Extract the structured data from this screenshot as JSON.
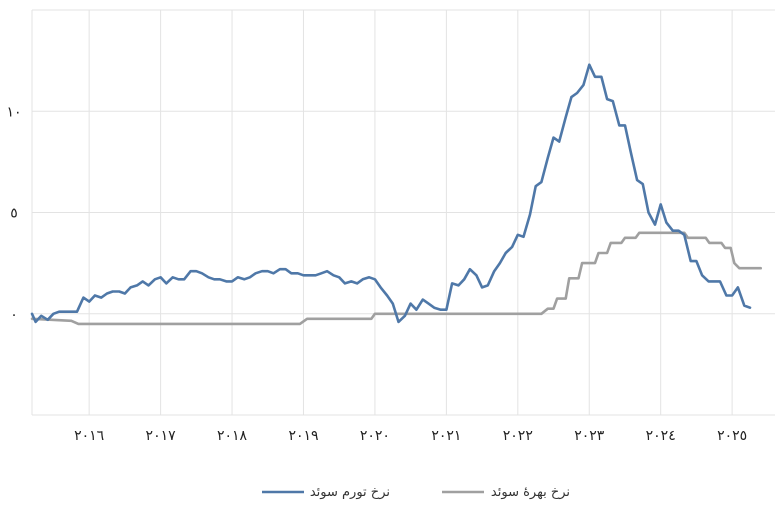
{
  "chart_data": {
    "type": "line",
    "title": "",
    "xlabel": "",
    "ylabel": "",
    "xlim": [
      2015.2,
      2025.6
    ],
    "ylim": [
      -5,
      15
    ],
    "x_ticks": [
      2016,
      2017,
      2018,
      2019,
      2020,
      2021,
      2022,
      2023,
      2024,
      2025
    ],
    "x_tick_labels": [
      "٢٠١٦",
      "٢٠١٧",
      "٢٠١٨",
      "٢٠١٩",
      "٢٠٢٠",
      "٢٠٢١",
      "٢٠٢٢",
      "٢٠٢٣",
      "٢٠٢٤",
      "٢٠٢٥"
    ],
    "y_ticks": [
      0,
      5,
      10
    ],
    "y_tick_labels": [
      "٠",
      "٥",
      "١٠"
    ],
    "grid": true,
    "legend_position": "bottom",
    "series": [
      {
        "name": "نرخ تورم سوئد",
        "color": "#4f78a8",
        "points": [
          [
            2015.2,
            0.0
          ],
          [
            2015.25,
            -0.4
          ],
          [
            2015.33,
            -0.1
          ],
          [
            2015.42,
            -0.3
          ],
          [
            2015.5,
            0.0
          ],
          [
            2015.58,
            0.1
          ],
          [
            2015.67,
            0.1
          ],
          [
            2015.75,
            0.1
          ],
          [
            2015.83,
            0.1
          ],
          [
            2015.92,
            0.8
          ],
          [
            2016.0,
            0.6
          ],
          [
            2016.08,
            0.9
          ],
          [
            2016.17,
            0.8
          ],
          [
            2016.25,
            1.0
          ],
          [
            2016.33,
            1.1
          ],
          [
            2016.42,
            1.1
          ],
          [
            2016.5,
            1.0
          ],
          [
            2016.58,
            1.3
          ],
          [
            2016.67,
            1.4
          ],
          [
            2016.75,
            1.6
          ],
          [
            2016.83,
            1.4
          ],
          [
            2016.92,
            1.7
          ],
          [
            2017.0,
            1.8
          ],
          [
            2017.08,
            1.5
          ],
          [
            2017.17,
            1.8
          ],
          [
            2017.25,
            1.7
          ],
          [
            2017.33,
            1.7
          ],
          [
            2017.42,
            2.1
          ],
          [
            2017.5,
            2.1
          ],
          [
            2017.58,
            2.0
          ],
          [
            2017.67,
            1.8
          ],
          [
            2017.75,
            1.7
          ],
          [
            2017.83,
            1.7
          ],
          [
            2017.92,
            1.6
          ],
          [
            2018.0,
            1.6
          ],
          [
            2018.08,
            1.8
          ],
          [
            2018.17,
            1.7
          ],
          [
            2018.25,
            1.8
          ],
          [
            2018.33,
            2.0
          ],
          [
            2018.42,
            2.1
          ],
          [
            2018.5,
            2.1
          ],
          [
            2018.58,
            2.0
          ],
          [
            2018.67,
            2.2
          ],
          [
            2018.75,
            2.2
          ],
          [
            2018.83,
            2.0
          ],
          [
            2018.92,
            2.0
          ],
          [
            2019.0,
            1.9
          ],
          [
            2019.08,
            1.9
          ],
          [
            2019.17,
            1.9
          ],
          [
            2019.25,
            2.0
          ],
          [
            2019.33,
            2.1
          ],
          [
            2019.42,
            1.9
          ],
          [
            2019.5,
            1.8
          ],
          [
            2019.58,
            1.5
          ],
          [
            2019.67,
            1.6
          ],
          [
            2019.75,
            1.5
          ],
          [
            2019.83,
            1.7
          ],
          [
            2019.92,
            1.8
          ],
          [
            2020.0,
            1.7
          ],
          [
            2020.08,
            1.3
          ],
          [
            2020.17,
            0.9
          ],
          [
            2020.25,
            0.5
          ],
          [
            2020.33,
            -0.4
          ],
          [
            2020.42,
            -0.1
          ],
          [
            2020.5,
            0.5
          ],
          [
            2020.58,
            0.2
          ],
          [
            2020.67,
            0.7
          ],
          [
            2020.75,
            0.5
          ],
          [
            2020.83,
            0.3
          ],
          [
            2020.92,
            0.2
          ],
          [
            2021.0,
            0.2
          ],
          [
            2021.08,
            1.5
          ],
          [
            2021.17,
            1.4
          ],
          [
            2021.25,
            1.7
          ],
          [
            2021.33,
            2.2
          ],
          [
            2021.42,
            1.9
          ],
          [
            2021.5,
            1.3
          ],
          [
            2021.58,
            1.4
          ],
          [
            2021.67,
            2.1
          ],
          [
            2021.75,
            2.5
          ],
          [
            2021.83,
            3.0
          ],
          [
            2021.92,
            3.3
          ],
          [
            2022.0,
            3.9
          ],
          [
            2022.08,
            3.8
          ],
          [
            2022.17,
            4.9
          ],
          [
            2022.25,
            6.3
          ],
          [
            2022.33,
            6.5
          ],
          [
            2022.42,
            7.7
          ],
          [
            2022.5,
            8.7
          ],
          [
            2022.58,
            8.5
          ],
          [
            2022.67,
            9.7
          ],
          [
            2022.75,
            10.7
          ],
          [
            2022.83,
            10.9
          ],
          [
            2022.92,
            11.3
          ],
          [
            2023.0,
            12.3
          ],
          [
            2023.08,
            11.7
          ],
          [
            2023.17,
            11.7
          ],
          [
            2023.25,
            10.6
          ],
          [
            2023.33,
            10.5
          ],
          [
            2023.42,
            9.3
          ],
          [
            2023.5,
            9.3
          ],
          [
            2023.58,
            8.0
          ],
          [
            2023.67,
            6.6
          ],
          [
            2023.75,
            6.4
          ],
          [
            2023.83,
            5.0
          ],
          [
            2023.92,
            4.4
          ],
          [
            2024.0,
            5.4
          ],
          [
            2024.08,
            4.5
          ],
          [
            2024.17,
            4.1
          ],
          [
            2024.25,
            4.1
          ],
          [
            2024.33,
            3.9
          ],
          [
            2024.42,
            2.6
          ],
          [
            2024.5,
            2.6
          ],
          [
            2024.58,
            1.9
          ],
          [
            2024.67,
            1.6
          ],
          [
            2024.75,
            1.6
          ],
          [
            2024.83,
            1.6
          ],
          [
            2024.92,
            0.9
          ],
          [
            2025.0,
            0.9
          ],
          [
            2025.08,
            1.3
          ],
          [
            2025.17,
            0.4
          ],
          [
            2025.25,
            0.3
          ]
        ]
      },
      {
        "name": "نرخ بهرهٔ سوئد",
        "color": "#a0a0a0",
        "points": [
          [
            2015.2,
            -0.25
          ],
          [
            2015.75,
            -0.35
          ],
          [
            2015.85,
            -0.5
          ],
          [
            2018.95,
            -0.5
          ],
          [
            2019.05,
            -0.25
          ],
          [
            2019.95,
            -0.25
          ],
          [
            2020.0,
            0.0
          ],
          [
            2022.33,
            0.0
          ],
          [
            2022.42,
            0.25
          ],
          [
            2022.5,
            0.25
          ],
          [
            2022.55,
            0.75
          ],
          [
            2022.67,
            0.75
          ],
          [
            2022.72,
            1.75
          ],
          [
            2022.85,
            1.75
          ],
          [
            2022.9,
            2.5
          ],
          [
            2023.08,
            2.5
          ],
          [
            2023.13,
            3.0
          ],
          [
            2023.25,
            3.0
          ],
          [
            2023.3,
            3.5
          ],
          [
            2023.45,
            3.5
          ],
          [
            2023.5,
            3.75
          ],
          [
            2023.65,
            3.75
          ],
          [
            2023.7,
            4.0
          ],
          [
            2024.33,
            4.0
          ],
          [
            2024.38,
            3.75
          ],
          [
            2024.63,
            3.75
          ],
          [
            2024.68,
            3.5
          ],
          [
            2024.85,
            3.5
          ],
          [
            2024.9,
            3.25
          ],
          [
            2024.98,
            3.25
          ],
          [
            2025.03,
            2.5
          ],
          [
            2025.1,
            2.25
          ],
          [
            2025.4,
            2.25
          ]
        ]
      }
    ]
  }
}
